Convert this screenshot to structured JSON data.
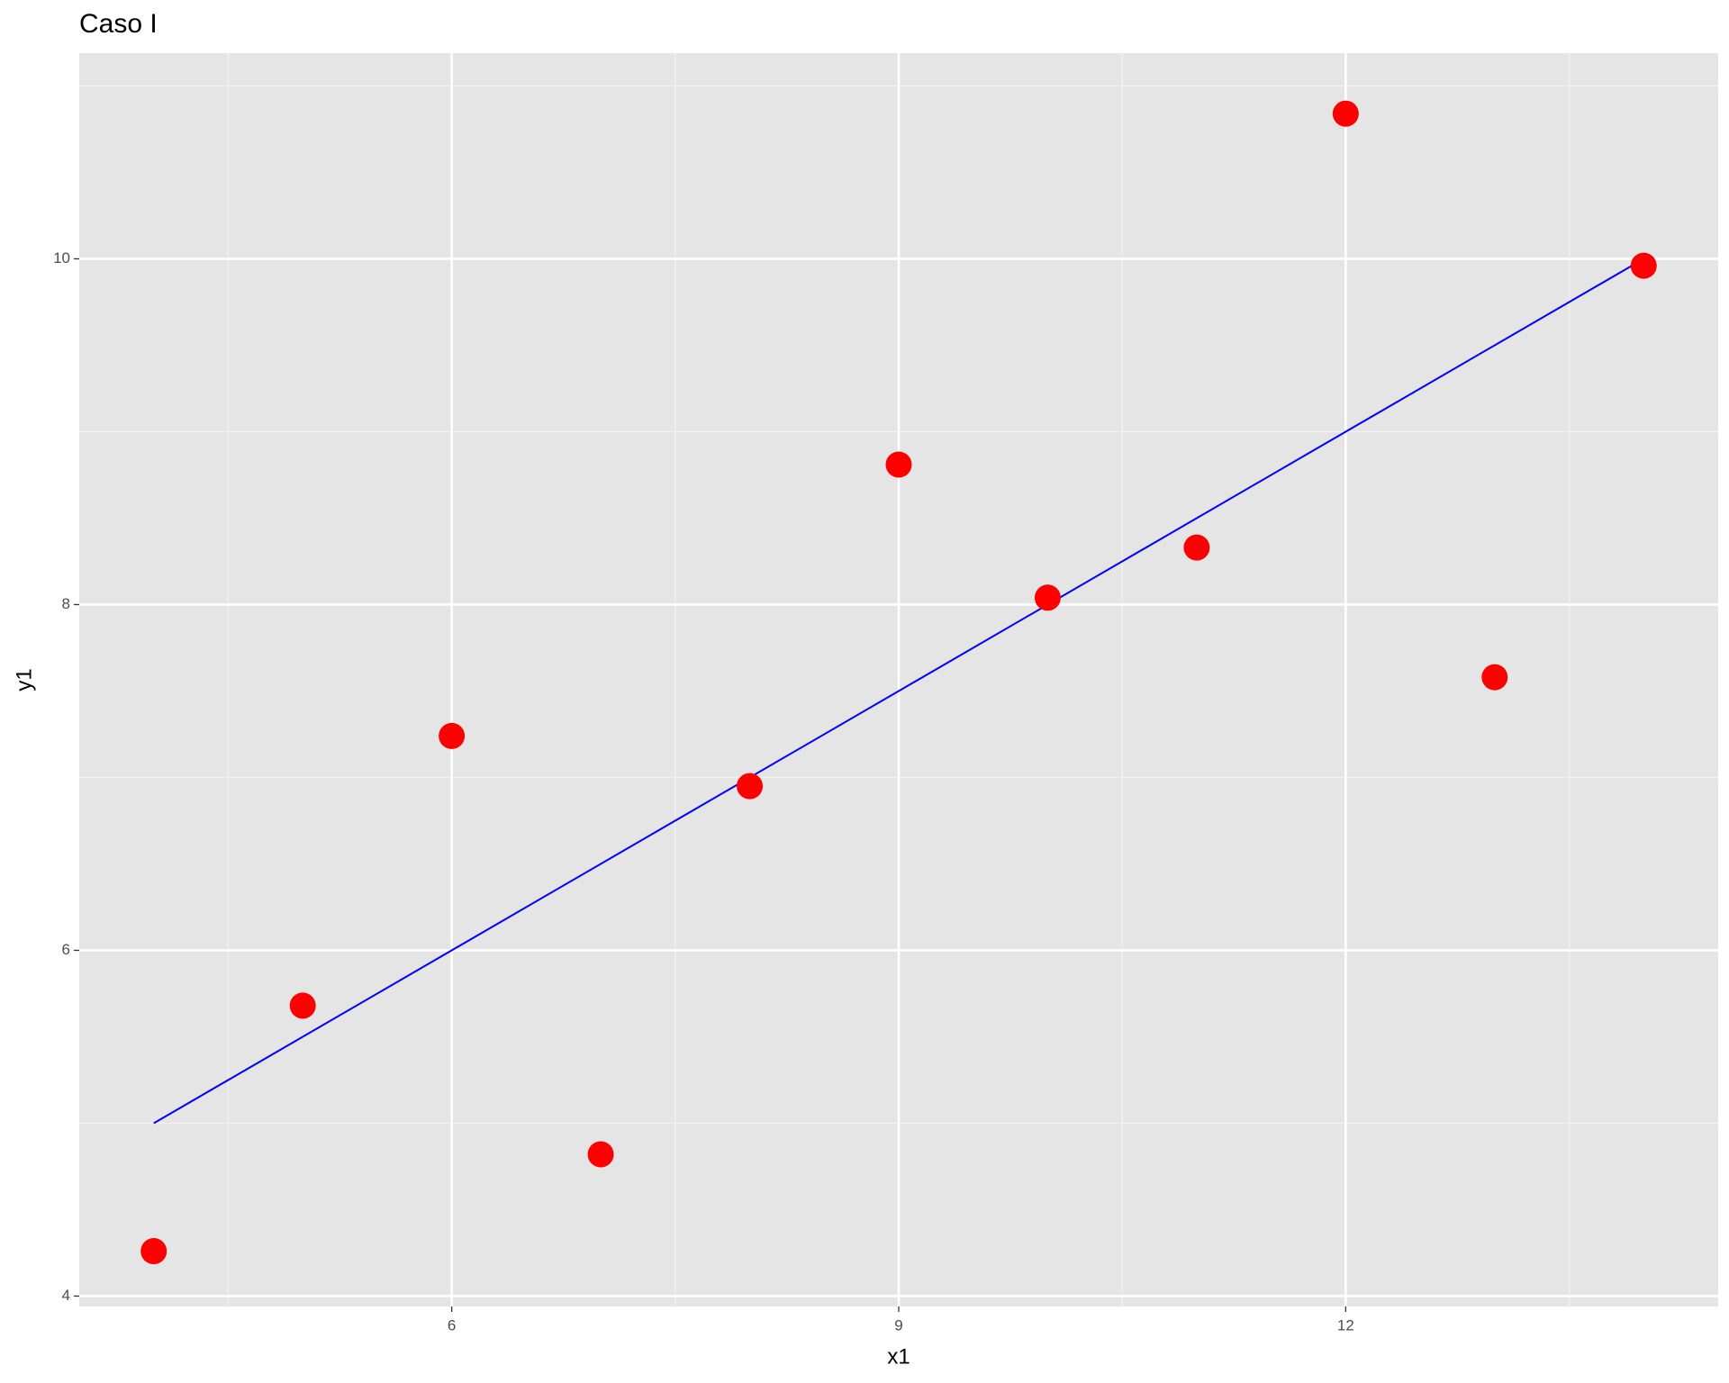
{
  "chart_data": {
    "type": "scatter",
    "title": "Caso I",
    "x_label": "x1",
    "y_label": "y1",
    "x": [
      10,
      8,
      13,
      9,
      11,
      14,
      6,
      4,
      12,
      7,
      5
    ],
    "values": [
      8.04,
      6.95,
      7.58,
      8.81,
      8.33,
      9.96,
      7.24,
      4.26,
      10.84,
      4.82,
      5.68
    ],
    "color": "#ff0000",
    "fit_line": {
      "type": "line",
      "color": "#0000ff",
      "x": [
        4,
        14
      ],
      "values": [
        5,
        10
      ]
    },
    "xlim": [
      3.5,
      14.5
    ],
    "ylim": [
      3.94,
      11.19
    ],
    "xticks": [
      6,
      9,
      12
    ],
    "yticks": [
      4,
      6,
      8,
      10
    ],
    "grid": true,
    "minor_grid": true
  }
}
